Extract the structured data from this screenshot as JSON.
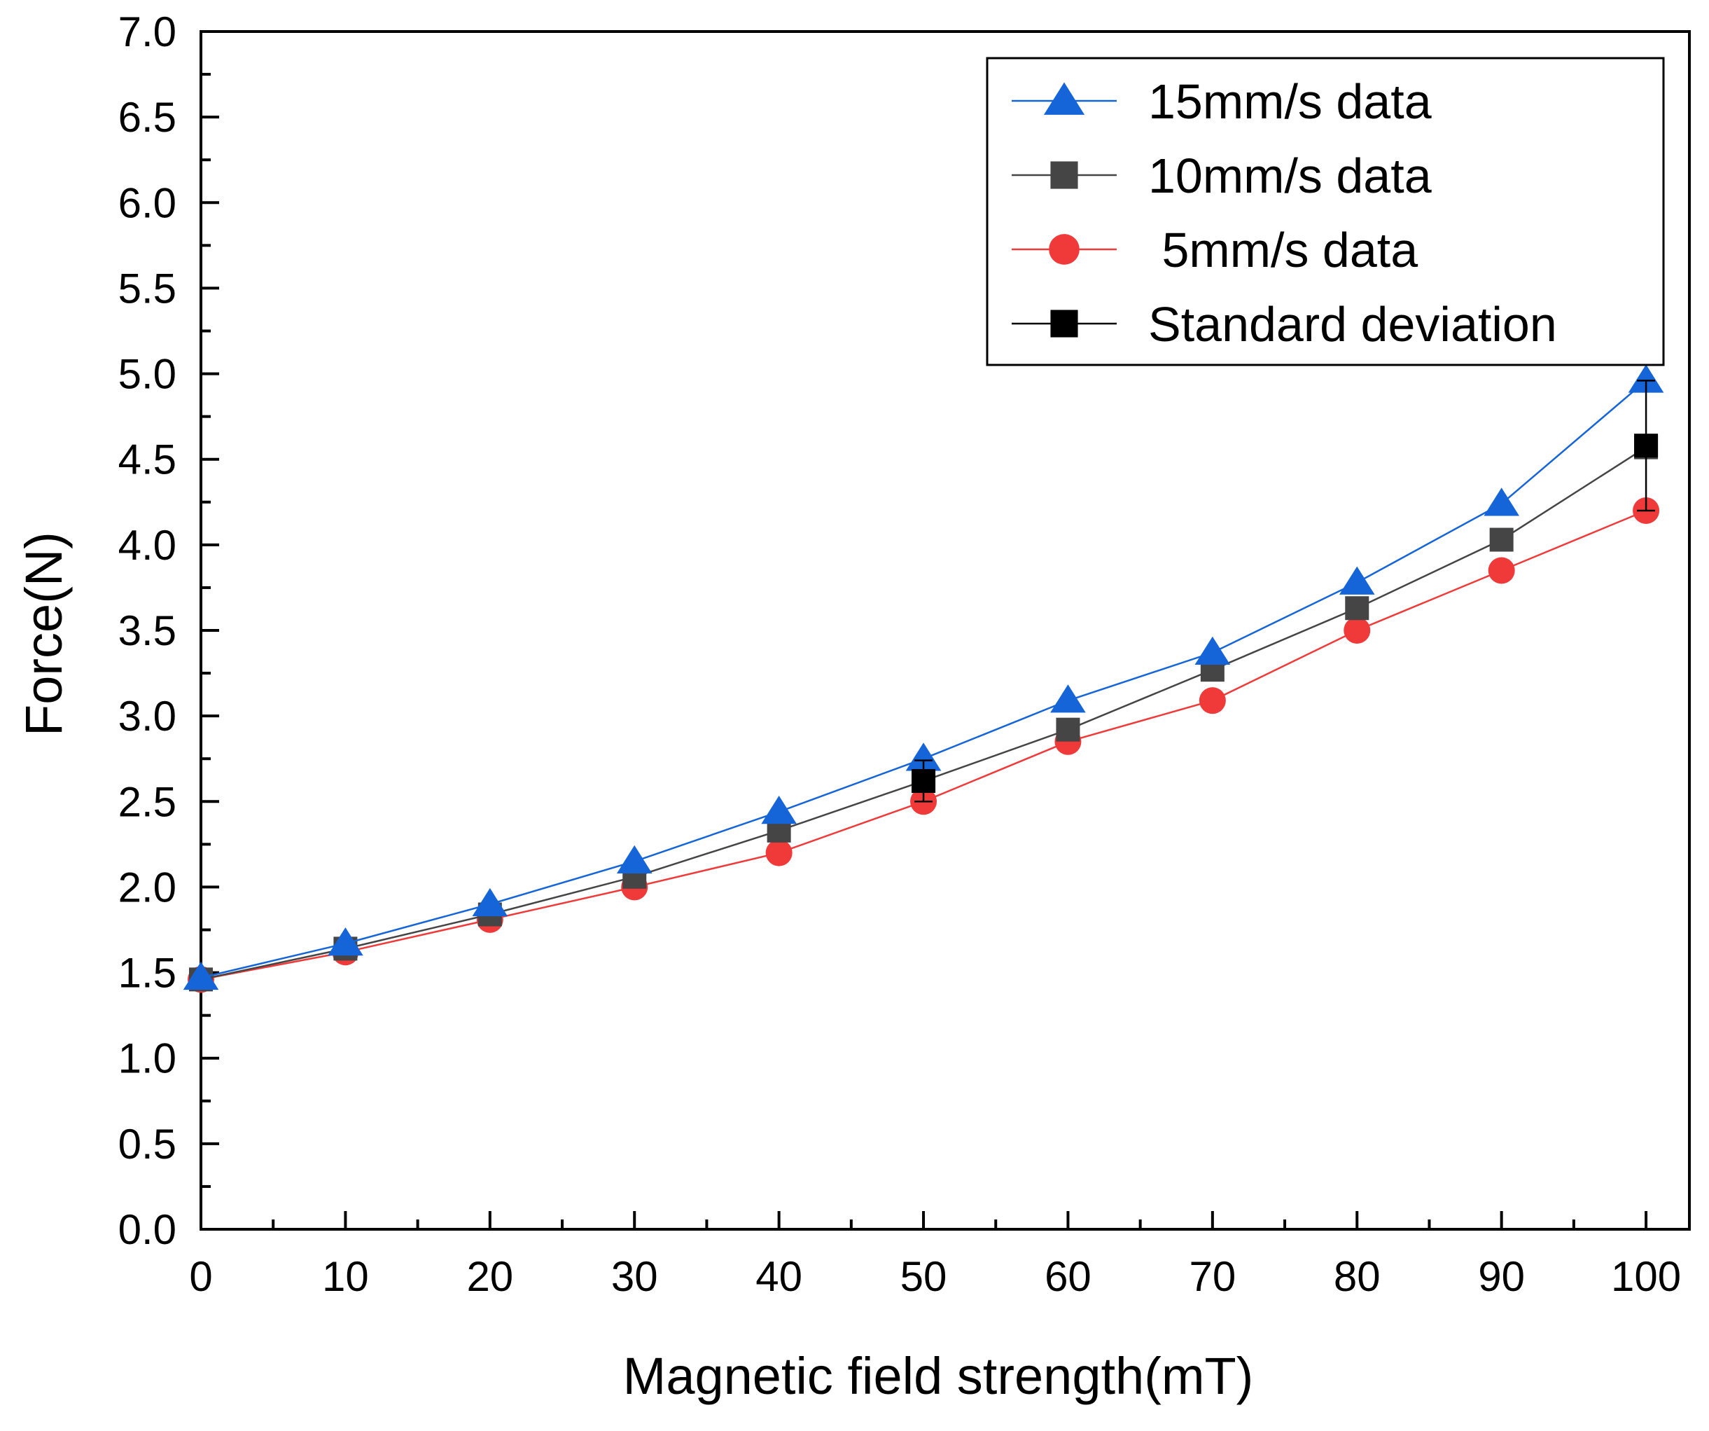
{
  "chart_data": {
    "type": "line",
    "title": "",
    "xlabel": "Magnetic field strength(mT)",
    "ylabel": "Force(N)",
    "xlim": [
      0,
      103
    ],
    "ylim": [
      0,
      7.0
    ],
    "x_ticks": [
      "0",
      "10",
      "20",
      "30",
      "40",
      "50",
      "60",
      "70",
      "80",
      "90",
      "100"
    ],
    "y_ticks": [
      "0.0",
      "0.5",
      "1.0",
      "1.5",
      "2.0",
      "2.5",
      "3.0",
      "3.5",
      "4.0",
      "4.5",
      "5.0",
      "5.5",
      "6.0",
      "6.5",
      "7.0"
    ],
    "grid": false,
    "legend_position": "top-right",
    "x": [
      0,
      10,
      20,
      30,
      40,
      50,
      60,
      70,
      80,
      90,
      100
    ],
    "series": [
      {
        "name": "15mm/s data",
        "marker": "triangle",
        "color": "#1565d8",
        "values": [
          1.47,
          1.67,
          1.9,
          2.15,
          2.44,
          2.75,
          3.09,
          3.37,
          3.78,
          4.24,
          4.96
        ]
      },
      {
        "name": "10mm/s data",
        "marker": "square",
        "color": "#454545",
        "values": [
          1.46,
          1.64,
          1.84,
          2.06,
          2.33,
          2.62,
          2.92,
          3.27,
          3.63,
          4.03,
          4.57
        ]
      },
      {
        "name": " 5mm/s data",
        "marker": "circle",
        "color": "#f03a3a",
        "values": [
          1.46,
          1.62,
          1.81,
          2.0,
          2.2,
          2.5,
          2.85,
          3.09,
          3.5,
          3.85,
          4.2
        ]
      }
    ],
    "standard_deviation": {
      "name": "Standard deviation",
      "marker": "square",
      "color": "#000000",
      "points": [
        {
          "x": 50,
          "y": 2.62,
          "err": 0.12
        },
        {
          "x": 100,
          "y": 4.58,
          "err": 0.38
        }
      ]
    }
  }
}
